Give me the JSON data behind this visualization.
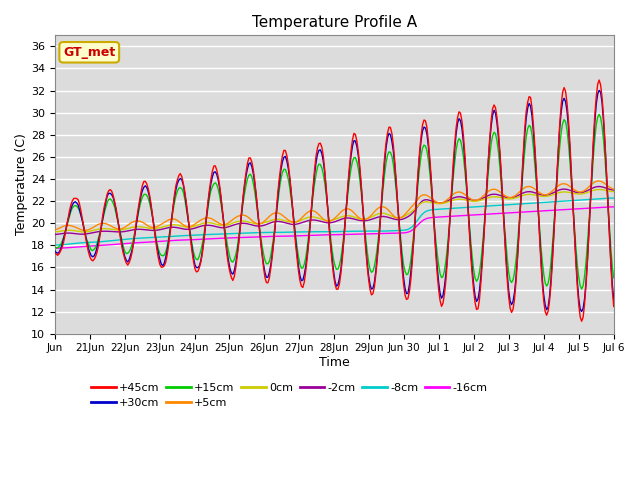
{
  "title": "Temperature Profile A",
  "xlabel": "Time",
  "ylabel": "Temperature (C)",
  "ylim": [
    10,
    37
  ],
  "yticks": [
    10,
    12,
    14,
    16,
    18,
    20,
    22,
    24,
    26,
    28,
    30,
    32,
    34,
    36
  ],
  "bg_color": "#dcdcdc",
  "legend_label": "GT_met",
  "legend_box_color": "#ffffcc",
  "legend_box_edge": "#ccaa00",
  "legend_text_color": "#cc0000",
  "series_colors": {
    "+45cm": "#ff0000",
    "+30cm": "#0000cc",
    "+15cm": "#00cc00",
    "+5cm": "#ff8800",
    "0cm": "#cccc00",
    "-2cm": "#990099",
    "-8cm": "#00cccc",
    "-16cm": "#ff00ff"
  },
  "total_days": 16,
  "tick_labels": [
    "Jun",
    "21Jun",
    "22Jun",
    "23Jun",
    "24Jun",
    "25Jun",
    "26Jun",
    "27Jun",
    "28Jun",
    "29Jun",
    "Jun 30",
    "Jul 1",
    "Jul 2",
    "Jul 3",
    "Jul 4",
    "Jul 5",
    "Jul 6"
  ]
}
